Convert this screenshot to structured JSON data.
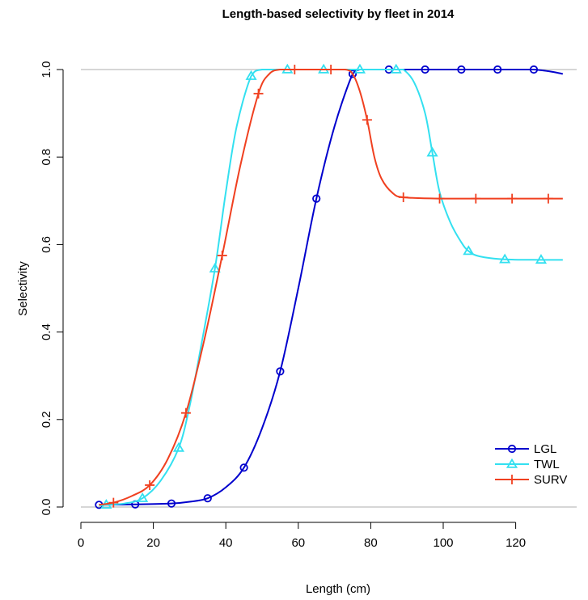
{
  "chart_data": {
    "type": "line",
    "title": "Length-based selectivity by fleet in 2014",
    "xlabel": "Length (cm)",
    "ylabel": "Selectivity",
    "xlim": [
      0,
      135
    ],
    "ylim": [
      0,
      1
    ],
    "xticks": [
      0,
      20,
      40,
      60,
      80,
      100,
      120
    ],
    "yticks": [
      0.0,
      0.2,
      0.4,
      0.6,
      0.8,
      1.0
    ],
    "xtick_labels": [
      "0",
      "20",
      "40",
      "60",
      "80",
      "100",
      "120"
    ],
    "ytick_labels": [
      "0.0",
      "0.2",
      "0.4",
      "0.6",
      "0.8",
      "1.0"
    ],
    "reference_lines": [
      0,
      1
    ],
    "legend_position": "bottom-right",
    "series": [
      {
        "name": "LGL",
        "color": "#0000CD",
        "marker": "circle",
        "line": [
          [
            5,
            0.005
          ],
          [
            15,
            0.006
          ],
          [
            25,
            0.008
          ],
          [
            30,
            0.012
          ],
          [
            35,
            0.02
          ],
          [
            40,
            0.045
          ],
          [
            45,
            0.09
          ],
          [
            50,
            0.18
          ],
          [
            55,
            0.31
          ],
          [
            60,
            0.5
          ],
          [
            65,
            0.705
          ],
          [
            70,
            0.87
          ],
          [
            75,
            0.99
          ],
          [
            77,
            1.0
          ],
          [
            80,
            1.0
          ],
          [
            90,
            1.0
          ],
          [
            100,
            1.0
          ],
          [
            110,
            1.0
          ],
          [
            120,
            1.0
          ],
          [
            125,
            1.0
          ],
          [
            130,
            0.995
          ],
          [
            133,
            0.99
          ]
        ],
        "markers": [
          [
            5,
            0.005
          ],
          [
            15,
            0.006
          ],
          [
            25,
            0.008
          ],
          [
            35,
            0.02
          ],
          [
            45,
            0.09
          ],
          [
            55,
            0.31
          ],
          [
            65,
            0.705
          ],
          [
            75,
            0.99
          ],
          [
            85,
            1.0
          ],
          [
            95,
            1.0
          ],
          [
            105,
            1.0
          ],
          [
            115,
            1.0
          ],
          [
            125,
            1.0
          ]
        ]
      },
      {
        "name": "TWL",
        "color": "#33E0F0",
        "marker": "triangle",
        "line": [
          [
            5,
            0.003
          ],
          [
            7,
            0.005
          ],
          [
            12,
            0.008
          ],
          [
            17,
            0.02
          ],
          [
            22,
            0.06
          ],
          [
            27,
            0.135
          ],
          [
            30,
            0.23
          ],
          [
            33,
            0.36
          ],
          [
            37,
            0.545
          ],
          [
            40,
            0.72
          ],
          [
            43,
            0.87
          ],
          [
            47,
            0.985
          ],
          [
            50,
            1.0
          ],
          [
            57,
            1.0
          ],
          [
            67,
            1.0
          ],
          [
            77,
            1.0
          ],
          [
            87,
            1.0
          ],
          [
            89,
            1.0
          ],
          [
            92,
            0.97
          ],
          [
            95,
            0.9
          ],
          [
            97,
            0.81
          ],
          [
            99,
            0.72
          ],
          [
            102,
            0.65
          ],
          [
            105,
            0.605
          ],
          [
            107,
            0.585
          ],
          [
            110,
            0.573
          ],
          [
            117,
            0.566
          ],
          [
            127,
            0.565
          ],
          [
            133,
            0.565
          ]
        ],
        "markers": [
          [
            7,
            0.005
          ],
          [
            17,
            0.02
          ],
          [
            27,
            0.135
          ],
          [
            37,
            0.545
          ],
          [
            47,
            0.985
          ],
          [
            57,
            1.0
          ],
          [
            67,
            1.0
          ],
          [
            77,
            1.0
          ],
          [
            87,
            1.0
          ],
          [
            97,
            0.81
          ],
          [
            107,
            0.585
          ],
          [
            117,
            0.566
          ],
          [
            127,
            0.565
          ]
        ]
      },
      {
        "name": "SURV",
        "color": "#F04020",
        "marker": "plus",
        "line": [
          [
            5,
            0.005
          ],
          [
            9,
            0.01
          ],
          [
            14,
            0.025
          ],
          [
            19,
            0.05
          ],
          [
            24,
            0.11
          ],
          [
            29,
            0.215
          ],
          [
            34,
            0.38
          ],
          [
            39,
            0.575
          ],
          [
            44,
            0.78
          ],
          [
            49,
            0.945
          ],
          [
            52,
            0.99
          ],
          [
            55,
            1.0
          ],
          [
            59,
            1.0
          ],
          [
            69,
            1.0
          ],
          [
            73,
            1.0
          ],
          [
            75,
            0.99
          ],
          [
            77,
            0.95
          ],
          [
            79,
            0.885
          ],
          [
            81,
            0.8
          ],
          [
            83,
            0.75
          ],
          [
            86,
            0.718
          ],
          [
            89,
            0.708
          ],
          [
            99,
            0.705
          ],
          [
            109,
            0.705
          ],
          [
            119,
            0.705
          ],
          [
            129,
            0.705
          ],
          [
            133,
            0.705
          ]
        ],
        "markers": [
          [
            9,
            0.01
          ],
          [
            19,
            0.05
          ],
          [
            29,
            0.215
          ],
          [
            39,
            0.575
          ],
          [
            49,
            0.945
          ],
          [
            59,
            1.0
          ],
          [
            69,
            1.0
          ],
          [
            79,
            0.885
          ],
          [
            89,
            0.708
          ],
          [
            99,
            0.705
          ],
          [
            109,
            0.705
          ],
          [
            119,
            0.705
          ],
          [
            129,
            0.705
          ]
        ]
      }
    ]
  }
}
